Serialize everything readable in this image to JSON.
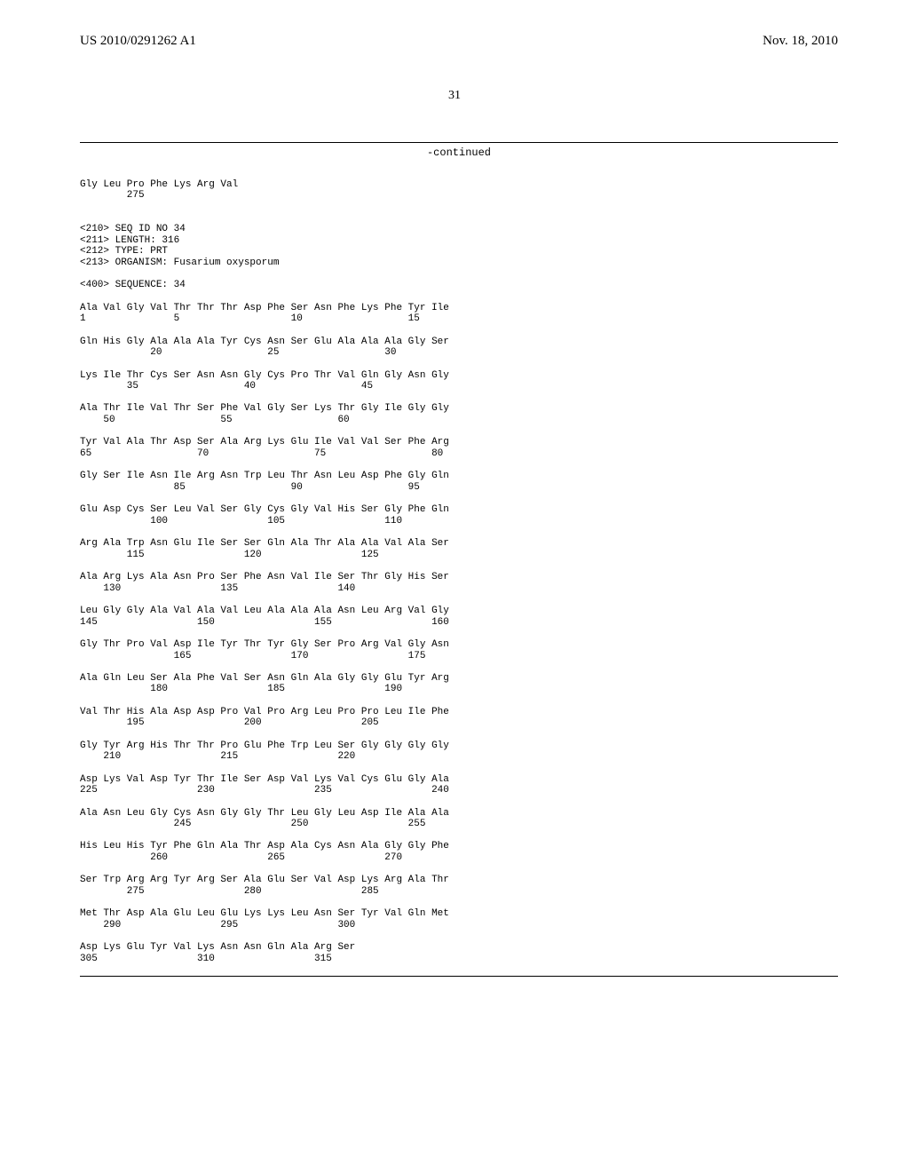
{
  "header": {
    "patent_number": "US 2010/0291262 A1",
    "date": "Nov. 18, 2010",
    "page_number": "31"
  },
  "continued_label": "-continued",
  "preamble": {
    "residual_line": "Gly Leu Pro Phe Lys Arg Val",
    "residual_pos": "        275",
    "seq_id": "<210> SEQ ID NO 34",
    "length": "<211> LENGTH: 316",
    "type": "<212> TYPE: PRT",
    "organism": "<213> ORGANISM: Fusarium oxysporum",
    "sequence_header": "<400> SEQUENCE: 34"
  },
  "sequence_rows": [
    {
      "aa": "Ala Val Gly Val Thr Thr Thr Asp Phe Ser Asn Phe Lys Phe Tyr Ile",
      "pos": "1               5                   10                  15"
    },
    {
      "aa": "Gln His Gly Ala Ala Ala Tyr Cys Asn Ser Glu Ala Ala Ala Gly Ser",
      "pos": "            20                  25                  30"
    },
    {
      "aa": "Lys Ile Thr Cys Ser Asn Asn Gly Cys Pro Thr Val Gln Gly Asn Gly",
      "pos": "        35                  40                  45"
    },
    {
      "aa": "Ala Thr Ile Val Thr Ser Phe Val Gly Ser Lys Thr Gly Ile Gly Gly",
      "pos": "    50                  55                  60"
    },
    {
      "aa": "Tyr Val Ala Thr Asp Ser Ala Arg Lys Glu Ile Val Val Ser Phe Arg",
      "pos": "65                  70                  75                  80"
    },
    {
      "aa": "Gly Ser Ile Asn Ile Arg Asn Trp Leu Thr Asn Leu Asp Phe Gly Gln",
      "pos": "                85                  90                  95"
    },
    {
      "aa": "Glu Asp Cys Ser Leu Val Ser Gly Cys Gly Val His Ser Gly Phe Gln",
      "pos": "            100                 105                 110"
    },
    {
      "aa": "Arg Ala Trp Asn Glu Ile Ser Ser Gln Ala Thr Ala Ala Val Ala Ser",
      "pos": "        115                 120                 125"
    },
    {
      "aa": "Ala Arg Lys Ala Asn Pro Ser Phe Asn Val Ile Ser Thr Gly His Ser",
      "pos": "    130                 135                 140"
    },
    {
      "aa": "Leu Gly Gly Ala Val Ala Val Leu Ala Ala Ala Asn Leu Arg Val Gly",
      "pos": "145                 150                 155                 160"
    },
    {
      "aa": "Gly Thr Pro Val Asp Ile Tyr Thr Tyr Gly Ser Pro Arg Val Gly Asn",
      "pos": "                165                 170                 175"
    },
    {
      "aa": "Ala Gln Leu Ser Ala Phe Val Ser Asn Gln Ala Gly Gly Glu Tyr Arg",
      "pos": "            180                 185                 190"
    },
    {
      "aa": "Val Thr His Ala Asp Asp Pro Val Pro Arg Leu Pro Pro Leu Ile Phe",
      "pos": "        195                 200                 205"
    },
    {
      "aa": "Gly Tyr Arg His Thr Thr Pro Glu Phe Trp Leu Ser Gly Gly Gly Gly",
      "pos": "    210                 215                 220"
    },
    {
      "aa": "Asp Lys Val Asp Tyr Thr Ile Ser Asp Val Lys Val Cys Glu Gly Ala",
      "pos": "225                 230                 235                 240"
    },
    {
      "aa": "Ala Asn Leu Gly Cys Asn Gly Gly Thr Leu Gly Leu Asp Ile Ala Ala",
      "pos": "                245                 250                 255"
    },
    {
      "aa": "His Leu His Tyr Phe Gln Ala Thr Asp Ala Cys Asn Ala Gly Gly Phe",
      "pos": "            260                 265                 270"
    },
    {
      "aa": "Ser Trp Arg Arg Tyr Arg Ser Ala Glu Ser Val Asp Lys Arg Ala Thr",
      "pos": "        275                 280                 285"
    },
    {
      "aa": "Met Thr Asp Ala Glu Leu Glu Lys Lys Leu Asn Ser Tyr Val Gln Met",
      "pos": "    290                 295                 300"
    },
    {
      "aa": "Asp Lys Glu Tyr Val Lys Asn Asn Gln Ala Arg Ser",
      "pos": "305                 310                 315"
    }
  ]
}
